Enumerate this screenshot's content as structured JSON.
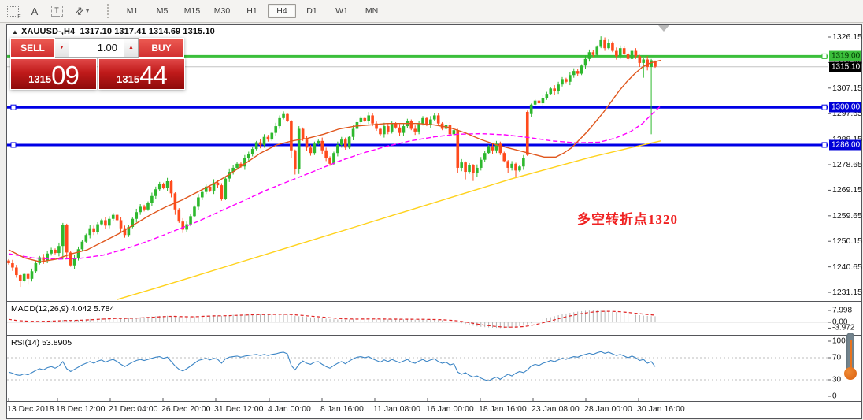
{
  "toolbar": {
    "icon_tools": [
      "grid-f-tool",
      "label-a-tool",
      "text-tool",
      "crosshair-tool"
    ],
    "timeframes": [
      "M1",
      "M5",
      "M15",
      "M30",
      "H1",
      "H4",
      "D1",
      "W1",
      "MN"
    ],
    "active_timeframe": "H4"
  },
  "chart": {
    "collapse_arrow": "▲",
    "symbol_tf": "XAUUSD-,H4",
    "ohlc_text": "1317.10 1317.41 1314.69 1315.10"
  },
  "trade_panel": {
    "sell_label": "SELL",
    "buy_label": "BUY",
    "volume": "1.00",
    "down_arrow": "▼",
    "up_arrow": "▲",
    "sell_price_small": "1315",
    "sell_price_big": "09",
    "buy_price_small": "1315",
    "buy_price_big": "44"
  },
  "annotation": {
    "text": "多空转折点1320"
  },
  "price_axis": {
    "ticks": [
      1326.15,
      1316.65,
      1307.15,
      1297.65,
      1288.15,
      1278.65,
      1269.15,
      1259.65,
      1250.15,
      1240.65,
      1231.15
    ],
    "badges": [
      {
        "value": "1319.00",
        "price": 1319.0,
        "bg": "#3bbf3b",
        "fg": "#003300"
      },
      {
        "value": "1315.10",
        "price": 1315.1,
        "bg": "#000000",
        "fg": "#ffffff"
      },
      {
        "value": "1300.00",
        "price": 1300.0,
        "bg": "#0000d8",
        "fg": "#ffffff"
      },
      {
        "value": "1286.00",
        "price": 1286.0,
        "bg": "#0000d8",
        "fg": "#ffffff"
      }
    ]
  },
  "indicators": {
    "macd_label": "MACD(12,26,9) 4.042 5.784",
    "macd_axis": [
      {
        "text": "7.998",
        "v": 7.998
      },
      {
        "text": "0.00",
        "v": 0.0
      },
      {
        "text": "-3.972",
        "v": -3.972
      }
    ],
    "rsi_label": "RSI(14) 53.8905",
    "rsi_axis": [
      {
        "text": "100",
        "v": 100
      },
      {
        "text": "70",
        "v": 70
      },
      {
        "text": "30",
        "v": 30
      },
      {
        "text": "0",
        "v": 0
      }
    ]
  },
  "time_axis": {
    "labels": [
      "13 Dec 2018",
      "18 Dec 12:00",
      "21 Dec 04:00",
      "26 Dec 20:00",
      "31 Dec 12:00",
      "4 Jan 00:00",
      "8 Jan 16:00",
      "11 Jan 08:00",
      "16 Jan 00:00",
      "18 Jan 16:00",
      "23 Jan 08:00",
      "28 Jan 00:00",
      "30 Jan 16:00"
    ],
    "lefts": [
      1,
      63,
      130,
      197,
      264,
      332,
      399,
      466,
      533,
      600,
      667,
      734,
      801
    ]
  },
  "chart_data": {
    "type": "candlestick",
    "symbol": "XAUUSD",
    "timeframe": "H4",
    "title": "XAUUSD-,H4 1317.10 1317.41 1314.69 1315.10",
    "current_bar": {
      "open": 1317.1,
      "high": 1317.41,
      "low": 1314.69,
      "close": 1315.1
    },
    "ylim": [
      1229.5,
      1330.5
    ],
    "colors": {
      "bull": "#2eb82e",
      "bear": "#ff4a1c",
      "ma_fast": "#e0561c",
      "ma_mid": "#ff00ff",
      "ma_slow": "#ffd21c",
      "hline_blue": "#0000e6",
      "hline_green": "#3bbf3b",
      "current_price_line": "#c4c4c4",
      "macd_hist": "#b3b3b3",
      "macd_signal": "#e02222",
      "rsi_line": "#3d86c6"
    },
    "opens_rule": "open of each bar equals previous close; first open 1243.0",
    "closes": [
      1242.0,
      1240.4,
      1237.6,
      1235.4,
      1238.0,
      1236.2,
      1239.0,
      1242.0,
      1244.2,
      1243.0,
      1245.6,
      1247.0,
      1245.8,
      1248.4,
      1256.2,
      1246.0,
      1241.2,
      1244.0,
      1247.2,
      1250.0,
      1252.5,
      1255.0,
      1253.5,
      1256.5,
      1258.0,
      1256.0,
      1258.5,
      1260.0,
      1258.0,
      1255.0,
      1252.5,
      1255.5,
      1258.5,
      1261.0,
      1263.0,
      1262.0,
      1264.5,
      1267.0,
      1269.5,
      1271.5,
      1270.0,
      1272.5,
      1268.0,
      1262.0,
      1257.5,
      1254.5,
      1256.5,
      1259.5,
      1263.0,
      1266.5,
      1268.5,
      1270.5,
      1269.0,
      1272.0,
      1271.0,
      1266.0,
      1273.5,
      1276.0,
      1277.5,
      1279.0,
      1278.0,
      1281.0,
      1282.5,
      1284.5,
      1287.0,
      1286.0,
      1289.0,
      1288.0,
      1290.5,
      1293.0,
      1296.0,
      1297.5,
      1295.0,
      1284.0,
      1277.0,
      1292.0,
      1288.0,
      1285.0,
      1283.0,
      1286.5,
      1287.5,
      1284.0,
      1281.0,
      1279.0,
      1283.0,
      1286.0,
      1288.0,
      1285.0,
      1289.0,
      1292.0,
      1294.5,
      1296.0,
      1295.0,
      1297.0,
      1294.0,
      1292.0,
      1290.0,
      1293.0,
      1291.0,
      1294.0,
      1292.5,
      1290.5,
      1293.0,
      1295.0,
      1292.0,
      1291.0,
      1294.0,
      1296.0,
      1293.5,
      1295.5,
      1297.0,
      1294.0,
      1292.0,
      1293.5,
      1290.0,
      1291.5,
      1277.5,
      1279.5,
      1276.0,
      1278.5,
      1275.5,
      1277.5,
      1280.5,
      1283.0,
      1285.5,
      1284.0,
      1286.5,
      1283.0,
      1280.0,
      1277.5,
      1279.0,
      1276.5,
      1278.0,
      1281.0,
      1282.3,
      1301.0,
      1302.5,
      1301.5,
      1303.5,
      1305.0,
      1307.0,
      1306.0,
      1308.5,
      1310.5,
      1309.5,
      1312.0,
      1313.5,
      1312.5,
      1315.5,
      1318.0,
      1320.5,
      1319.5,
      1322.5,
      1325.0,
      1322.0,
      1324.0,
      1321.0,
      1319.0,
      1322.0,
      1320.0,
      1318.0,
      1321.0,
      1319.0,
      1316.5,
      1317.8,
      1315.0,
      1317.5,
      1315.1
    ],
    "wick_overrides": {
      "3": [
        0.3,
        2.2
      ],
      "5": [
        0.3,
        2.2
      ],
      "14": [
        0.8,
        5.0
      ],
      "15": [
        0.5,
        2.5
      ],
      "42": [
        0.4,
        1.5
      ],
      "43": [
        0.4,
        2.0
      ],
      "71": [
        1.0,
        0.5
      ],
      "73": [
        0.3,
        3.0
      ],
      "74": [
        0.3,
        2.0
      ],
      "75": [
        1.0,
        1.8
      ],
      "110": [
        1.0,
        0.5
      ],
      "116": [
        0.5,
        1.8
      ],
      "118": [
        0.4,
        2.8
      ],
      "120": [
        0.4,
        2.9
      ],
      "129": [
        0.4,
        2.0
      ],
      "131": [
        0.4,
        2.5
      ],
      "134": [
        0.5,
        0.4
      ],
      "135": [
        0.4,
        1.2
      ],
      "153": [
        1.4,
        0.5
      ],
      "155": [
        1.2,
        0.4
      ],
      "163": [
        0.5,
        1.5
      ],
      "164": [
        0.5,
        5.5
      ],
      "166": [
        0.5,
        25.0
      ]
    },
    "open_overrides": {
      "134": 1298.3,
      "135": 1297.5
    },
    "full_overrides": {
      "167": [
        1317.1,
        1317.41,
        1314.69,
        1315.1
      ]
    },
    "horizontal_lines": [
      {
        "price": 1319.0,
        "color": "#3bbf3b",
        "width": 3,
        "handles": true
      },
      {
        "price": 1300.0,
        "color": "#0000e6",
        "width": 3,
        "handles": true
      },
      {
        "price": 1286.0,
        "color": "#0000e6",
        "width": 3,
        "handles": true
      },
      {
        "price": 1315.1,
        "color": "#c4c4c4",
        "width": 1,
        "handles": false
      }
    ],
    "ma_fast": [
      [
        10,
        1247
      ],
      [
        30,
        1244
      ],
      [
        50,
        1242.5
      ],
      [
        70,
        1243.5
      ],
      [
        90,
        1245.5
      ],
      [
        110,
        1247
      ],
      [
        130,
        1250
      ],
      [
        150,
        1253
      ],
      [
        170,
        1256.5
      ],
      [
        190,
        1260
      ],
      [
        210,
        1263
      ],
      [
        230,
        1265.5
      ],
      [
        250,
        1268.5
      ],
      [
        270,
        1271.5
      ],
      [
        290,
        1275
      ],
      [
        310,
        1279
      ],
      [
        330,
        1283
      ],
      [
        350,
        1286
      ],
      [
        370,
        1287.5
      ],
      [
        390,
        1288.5
      ],
      [
        410,
        1290
      ],
      [
        430,
        1292
      ],
      [
        450,
        1293
      ],
      [
        470,
        1293.5
      ],
      [
        490,
        1294
      ],
      [
        510,
        1294
      ],
      [
        530,
        1294
      ],
      [
        550,
        1293.5
      ],
      [
        570,
        1292.5
      ],
      [
        590,
        1290.5
      ],
      [
        610,
        1288
      ],
      [
        630,
        1286
      ],
      [
        650,
        1284.5
      ],
      [
        670,
        1283
      ],
      [
        690,
        1281.5
      ],
      [
        705,
        1281.5
      ],
      [
        715,
        1283
      ],
      [
        725,
        1285
      ],
      [
        735,
        1288
      ],
      [
        745,
        1291
      ],
      [
        755,
        1294.5
      ],
      [
        765,
        1298
      ],
      [
        775,
        1302
      ],
      [
        785,
        1306
      ],
      [
        795,
        1309.5
      ],
      [
        805,
        1312.5
      ],
      [
        815,
        1315
      ],
      [
        825,
        1316.5
      ],
      [
        838,
        1317.5
      ]
    ],
    "ma_mid": [
      [
        10,
        1245.5
      ],
      [
        40,
        1244
      ],
      [
        70,
        1243.5
      ],
      [
        100,
        1243.8
      ],
      [
        130,
        1245
      ],
      [
        160,
        1247.5
      ],
      [
        190,
        1250.5
      ],
      [
        220,
        1254
      ],
      [
        250,
        1257.5
      ],
      [
        280,
        1261.5
      ],
      [
        310,
        1265.5
      ],
      [
        340,
        1269.5
      ],
      [
        370,
        1273
      ],
      [
        400,
        1276.5
      ],
      [
        430,
        1280
      ],
      [
        460,
        1283
      ],
      [
        490,
        1285.5
      ],
      [
        520,
        1287.5
      ],
      [
        550,
        1289
      ],
      [
        580,
        1290
      ],
      [
        610,
        1290.2
      ],
      [
        640,
        1289.8
      ],
      [
        670,
        1288.8
      ],
      [
        700,
        1287.5
      ],
      [
        730,
        1286.8
      ],
      [
        760,
        1287
      ],
      [
        780,
        1288.5
      ],
      [
        800,
        1291
      ],
      [
        815,
        1294
      ],
      [
        827,
        1297.5
      ],
      [
        838,
        1300.5
      ]
    ],
    "ma_slow": [
      [
        148,
        1228.5
      ],
      [
        200,
        1233
      ],
      [
        250,
        1237.5
      ],
      [
        300,
        1242
      ],
      [
        350,
        1246.5
      ],
      [
        400,
        1251
      ],
      [
        450,
        1255.5
      ],
      [
        500,
        1260
      ],
      [
        550,
        1264.5
      ],
      [
        600,
        1269
      ],
      [
        650,
        1273.5
      ],
      [
        700,
        1277.5
      ],
      [
        750,
        1281.5
      ],
      [
        800,
        1285
      ],
      [
        838,
        1287.5
      ]
    ],
    "macd": {
      "params": "12,26,9",
      "current_main": 4.042,
      "current_signal": 5.784,
      "values": [
        0.3,
        0.2,
        0.1,
        0.2,
        0.3,
        0.3,
        0.4,
        0.5,
        0.7,
        0.8,
        1.0,
        1.1,
        1.2,
        1.4,
        1.6,
        1.5,
        1.3,
        1.4,
        1.6,
        1.8,
        2.0,
        2.2,
        2.3,
        2.5,
        2.7,
        2.6,
        2.8,
        3.0,
        2.9,
        2.7,
        2.6,
        2.8,
        3.0,
        3.2,
        3.4,
        3.5,
        3.7,
        3.9,
        4.1,
        4.3,
        4.2,
        4.4,
        4.2,
        3.9,
        3.6,
        3.4,
        3.5,
        3.7,
        3.9,
        4.2,
        4.4,
        4.6,
        4.5,
        4.7,
        4.6,
        4.3,
        4.6,
        4.8,
        5.0,
        5.1,
        5.0,
        5.2,
        5.3,
        5.4,
        5.5,
        5.3,
        5.4,
        5.3,
        5.4,
        5.5,
        5.5,
        5.4,
        5.2,
        4.8,
        4.3,
        4.1,
        3.9,
        3.6,
        3.3,
        3.1,
        3.0,
        2.8,
        2.5,
        2.2,
        2.0,
        1.9,
        1.9,
        1.8,
        1.9,
        2.0,
        2.1,
        2.2,
        2.3,
        2.4,
        2.3,
        2.2,
        2.1,
        2.1,
        2.0,
        2.1,
        2.1,
        2.0,
        2.0,
        2.1,
        2.0,
        1.9,
        1.9,
        2.0,
        1.9,
        1.8,
        1.7,
        1.5,
        1.3,
        1.1,
        0.8,
        0.5,
        0.0,
        -0.6,
        -1.2,
        -1.8,
        -2.3,
        -2.8,
        -3.1,
        -3.3,
        -3.5,
        -3.7,
        -3.8,
        -3.9,
        -3.8,
        -3.6,
        -3.3,
        -3.0,
        -2.6,
        -2.2,
        -1.4,
        -0.6,
        0.3,
        1.1,
        1.9,
        2.7,
        3.4,
        4.1,
        4.8,
        5.4,
        5.9,
        6.4,
        6.8,
        7.2,
        7.5,
        7.8,
        7.9,
        8.0,
        7.95,
        7.85,
        7.7,
        7.5,
        7.2,
        6.9,
        6.5,
        6.1,
        5.7,
        5.4,
        5.1,
        4.8,
        4.5,
        4.3,
        4.15,
        4.042
      ]
    },
    "rsi": {
      "period": 14,
      "current": 53.8905,
      "levels": [
        70,
        30
      ],
      "values": [
        44,
        42,
        39,
        38,
        41,
        39,
        43,
        47,
        50,
        48,
        52,
        54,
        51,
        55,
        63,
        50,
        45,
        49,
        53,
        57,
        60,
        63,
        60,
        64,
        66,
        62,
        65,
        67,
        63,
        58,
        54,
        58,
        62,
        65,
        67,
        65,
        67,
        69,
        71,
        72,
        69,
        71,
        63,
        55,
        49,
        46,
        50,
        55,
        60,
        65,
        67,
        69,
        66,
        69,
        67,
        60,
        68,
        71,
        72,
        73,
        71,
        73,
        74,
        75,
        76,
        74,
        76,
        74,
        76,
        77,
        79,
        80,
        77,
        56,
        48,
        58,
        64,
        60,
        58,
        62,
        63,
        58,
        54,
        51,
        56,
        60,
        63,
        59,
        64,
        68,
        71,
        72,
        70,
        72,
        68,
        65,
        62,
        66,
        63,
        67,
        64,
        61,
        64,
        67,
        62,
        60,
        64,
        67,
        63,
        66,
        68,
        63,
        60,
        62,
        57,
        59,
        44,
        40,
        43,
        38,
        35,
        37,
        33,
        30,
        28,
        32,
        35,
        31,
        36,
        40,
        37,
        42,
        45,
        43,
        48,
        55,
        58,
        56,
        60,
        62,
        65,
        63,
        66,
        69,
        67,
        70,
        72,
        71,
        74,
        76,
        78,
        76,
        79,
        81,
        78,
        80,
        77,
        74,
        76,
        73,
        70,
        73,
        70,
        65,
        67,
        60,
        63,
        53.89
      ]
    },
    "x_labels": [
      "13 Dec 2018",
      "18 Dec 12:00",
      "21 Dec 04:00",
      "26 Dec 20:00",
      "31 Dec 12:00",
      "4 Jan 00:00",
      "8 Jan 16:00",
      "11 Jan 08:00",
      "16 Jan 00:00",
      "18 Jan 16:00",
      "23 Jan 08:00",
      "28 Jan 00:00",
      "30 Jan 16:00"
    ]
  }
}
